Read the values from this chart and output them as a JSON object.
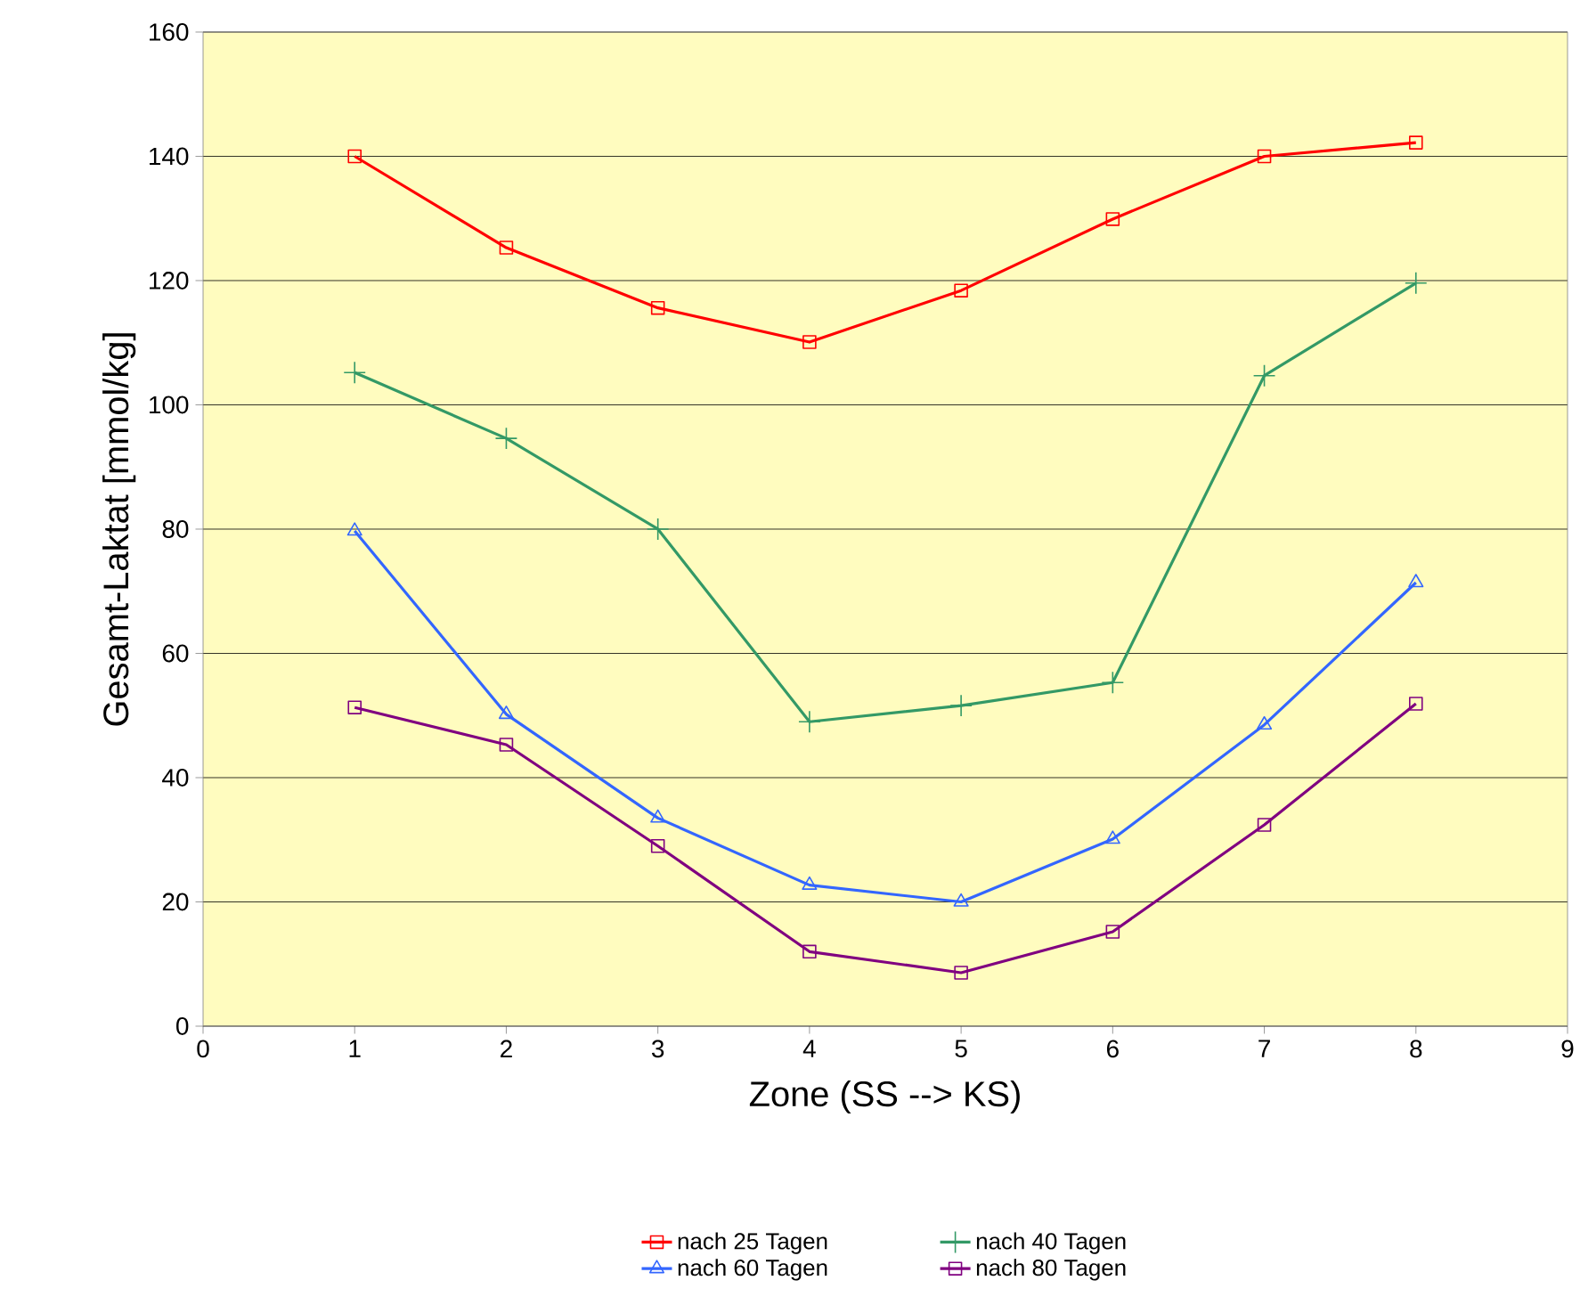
{
  "chart_data": {
    "type": "line",
    "xlabel": "Zone (SS --> KS)",
    "ylabel": "Gesamt-Laktat [mmol/kg]",
    "x": [
      1,
      2,
      3,
      4,
      5,
      6,
      7,
      8
    ],
    "xlim": [
      0,
      9
    ],
    "xticks": [
      0,
      1,
      2,
      3,
      4,
      5,
      6,
      7,
      8,
      9
    ],
    "ylim": [
      0,
      160
    ],
    "yticks": [
      0,
      20,
      40,
      60,
      80,
      100,
      120,
      140,
      160
    ],
    "grid": "y",
    "legend": "bottom",
    "line_style": "solid",
    "series": [
      {
        "name": "nach 25 Tagen",
        "color": "#ff0000",
        "marker": "square",
        "values": [
          140,
          125.3,
          115.6,
          110.1,
          118.4,
          129.9,
          140,
          142.2
        ]
      },
      {
        "name": "nach 40 Tagen",
        "color": "#339966",
        "marker": "cross",
        "values": [
          105.2,
          94.6,
          80,
          49,
          51.6,
          55.3,
          104.7,
          119.6
        ]
      },
      {
        "name": "nach 60 Tagen",
        "color": "#3366ff",
        "marker": "triangle",
        "values": [
          79.7,
          50.2,
          33.5,
          22.7,
          20,
          30.1,
          48.5,
          71.4
        ]
      },
      {
        "name": "nach 80 Tagen",
        "color": "#800080",
        "marker": "square",
        "values": [
          51.3,
          45.3,
          29,
          12,
          8.6,
          15.2,
          32.4,
          51.9
        ]
      }
    ]
  }
}
